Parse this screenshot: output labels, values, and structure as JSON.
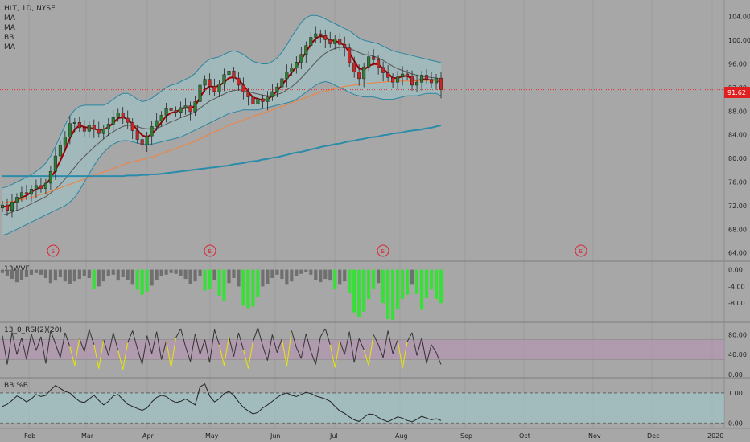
{
  "header": {
    "symbol_line": "HLT, 1D, NYSE",
    "indicators": [
      "MA",
      "MA",
      "BB",
      "MA"
    ]
  },
  "price_label": "91.62",
  "panes": {
    "wvf_label": "13WVF",
    "rsi_label": "13_0_RSI(2)(20)",
    "bbp_label": "BB %B"
  },
  "axes": {
    "price_ticks": [
      "104.00",
      "100.00",
      "96.00",
      "92.00",
      "88.00",
      "84.00",
      "80.00",
      "76.00",
      "72.00",
      "68.00",
      "64.00"
    ],
    "wvf_ticks": [
      "0.00",
      "-4.00",
      "-8.00"
    ],
    "rsi_ticks": [
      "80.00",
      "40.00",
      "0.00"
    ],
    "bbp_ticks": [
      "1.00",
      "0.00"
    ],
    "time_ticks": [
      "Feb",
      "Mar",
      "Apr",
      "May",
      "Jun",
      "Jul",
      "Aug",
      "Sep",
      "Oct",
      "Nov",
      "Dec",
      "2020"
    ]
  },
  "earnings_marker": "E",
  "colors": {
    "background": "#a7a7a7",
    "up_candle": "#2e7d32",
    "down_candle": "#c62828",
    "ma_fast": "#a00000",
    "ma_slow": "#555555",
    "ma_100": "#e8874a",
    "ma_200": "#2b8caa",
    "bb_fill": "#9ec8cc",
    "bb_line": "#2a86a1",
    "price_line": "#e03030",
    "wvf_bar": "#6f6f6f",
    "wvf_spike": "#36e036",
    "rsi_band": "#b493b0",
    "rsi_line": "#333333",
    "rsi_highlight": "#e8e800",
    "bbp_fill": "#9ec8cc"
  },
  "chart_data": [
    {
      "type": "candlestick",
      "title": "HLT, 1D, NYSE",
      "ylim": [
        63,
        106
      ],
      "x_range": [
        "2019-01-21",
        "2020-01-06"
      ],
      "x_ticks": [
        "Feb",
        "Mar",
        "Apr",
        "May",
        "Jun",
        "Jul",
        "Aug",
        "Sep",
        "Oct",
        "Nov",
        "Dec",
        "2020"
      ],
      "last_price": 91.62,
      "close_series": [
        72.1,
        71.2,
        72.6,
        73.4,
        74.2,
        73.9,
        74.8,
        75.4,
        74.9,
        75.8,
        77.8,
        80.4,
        82.2,
        83.6,
        85.9,
        86.1,
        85.2,
        84.6,
        85.6,
        84.9,
        84.2,
        85.0,
        85.8,
        86.9,
        87.7,
        86.8,
        86.1,
        84.7,
        83.2,
        82.3,
        83.8,
        85.4,
        86.4,
        87.3,
        88.4,
        88.1,
        87.8,
        88.6,
        88.9,
        87.9,
        89.6,
        92.4,
        93.4,
        92.2,
        91.3,
        92.6,
        94.2,
        94.8,
        93.6,
        92.4,
        91.2,
        90.4,
        89.2,
        90.1,
        89.6,
        90.4,
        91.3,
        92.1,
        93.5,
        94.6,
        95.3,
        96.3,
        97.6,
        99.1,
        100.5,
        101.1,
        100.8,
        100.1,
        99.4,
        100.2,
        99.3,
        98.7,
        96.2,
        94.6,
        93.5,
        95.5,
        97.2,
        96.7,
        95.4,
        94.5,
        93.7,
        92.9,
        93.8,
        94.3,
        93.9,
        92.4,
        92.9,
        94.1,
        93.4,
        92.8,
        93.6,
        91.62
      ],
      "series": [
        {
          "name": "MA",
          "values": [
            71.8,
            71.9,
            72.3,
            72.9,
            73.4,
            73.7,
            74.3,
            74.8,
            75.1,
            75.6,
            76.6,
            78.0,
            79.6,
            81.4,
            83.4,
            84.9,
            85.6,
            85.3,
            85.2,
            85.0,
            84.8,
            84.9,
            85.3,
            86.0,
            86.8,
            87.0,
            86.6,
            85.8,
            84.8,
            83.9,
            83.6,
            84.1,
            85.0,
            86.1,
            87.2,
            87.7,
            87.9,
            88.3,
            88.6,
            88.5,
            88.9,
            90.3,
            91.6,
            92.2,
            92.1,
            92.3,
            92.9,
            93.6,
            93.8,
            93.3,
            92.4,
            91.3,
            90.3,
            90.1,
            89.8,
            90.0,
            90.6,
            91.4,
            92.4,
            93.5,
            94.5,
            95.5,
            96.7,
            98.0,
            99.3,
            100.3,
            100.7,
            100.5,
            100.0,
            99.9,
            99.6,
            99.1,
            97.9,
            96.5,
            95.2,
            95.0,
            95.6,
            96.0,
            95.9,
            95.2,
            94.4,
            93.6,
            93.6,
            93.9,
            94.0,
            93.4,
            93.1,
            93.4,
            93.4,
            93.2,
            93.3,
            92.9
          ]
        },
        {
          "name": "MA",
          "values": [
            70.4,
            70.6,
            70.9,
            71.2,
            71.5,
            71.9,
            72.3,
            72.7,
            73.1,
            73.5,
            74.1,
            74.8,
            75.6,
            76.5,
            77.5,
            78.5,
            79.5,
            80.3,
            81.1,
            81.9,
            82.6,
            83.3,
            84.0,
            84.5,
            85.0,
            85.4,
            85.6,
            85.6,
            85.4,
            85.1,
            85.0,
            85.0,
            85.1,
            85.4,
            85.8,
            86.2,
            86.5,
            86.9,
            87.2,
            87.5,
            87.9,
            88.5,
            89.1,
            89.7,
            90.1,
            90.5,
            90.9,
            91.3,
            91.5,
            91.6,
            91.5,
            91.3,
            91.1,
            90.9,
            90.7,
            90.6,
            90.6,
            90.8,
            91.1,
            91.6,
            92.1,
            92.8,
            93.6,
            94.5,
            95.4,
            96.3,
            97.1,
            97.8,
            98.3,
            98.6,
            98.8,
            98.8,
            98.6,
            98.3,
            97.9,
            97.6,
            97.5,
            97.3,
            97.0,
            96.6,
            96.1,
            95.6,
            95.2,
            94.9,
            94.6,
            94.3,
            94.1,
            93.9,
            93.8,
            93.7,
            93.6,
            93.4
          ]
        },
        {
          "name": "MA",
          "values": [
            72.5,
            72.6,
            72.7,
            72.9,
            73.0,
            73.2,
            73.4,
            73.6,
            73.9,
            74.1,
            74.4,
            74.7,
            75.0,
            75.3,
            75.6,
            75.9,
            76.2,
            76.5,
            76.8,
            77.1,
            77.4,
            77.7,
            78.0,
            78.3,
            78.6,
            78.9,
            79.2,
            79.4,
            79.6,
            79.8,
            80.0,
            80.2,
            80.5,
            80.8,
            81.1,
            81.4,
            81.7,
            82.0,
            82.3,
            82.6,
            82.9,
            83.3,
            83.7,
            84.1,
            84.5,
            84.8,
            85.2,
            85.6,
            85.9,
            86.2,
            86.5,
            86.8,
            87.1,
            87.4,
            87.6,
            87.9,
            88.2,
            88.5,
            88.8,
            89.1,
            89.4,
            89.7,
            90.0,
            90.3,
            90.6,
            90.9,
            91.2,
            91.4,
            91.6,
            91.8,
            92.0,
            92.2,
            92.3,
            92.4,
            92.5,
            92.6,
            92.7,
            92.8,
            92.9,
            92.9,
            93.0,
            93.0,
            93.1,
            93.1,
            93.1,
            93.1,
            93.1,
            93.2,
            93.2,
            93.2,
            93.2,
            93.2
          ]
        },
        {
          "name": "MA",
          "values": [
            77.0,
            77.0,
            77.0,
            77.0,
            77.0,
            77.0,
            77.0,
            77.0,
            77.0,
            77.0,
            77.0,
            77.0,
            77.0,
            77.0,
            77.0,
            77.0,
            77.0,
            77.0,
            77.0,
            77.0,
            77.0,
            77.0,
            77.0,
            77.0,
            77.0,
            77.0,
            77.1,
            77.1,
            77.1,
            77.2,
            77.2,
            77.3,
            77.3,
            77.4,
            77.5,
            77.6,
            77.7,
            77.8,
            77.9,
            78.0,
            78.1,
            78.2,
            78.3,
            78.4,
            78.5,
            78.6,
            78.7,
            78.8,
            79.0,
            79.1,
            79.2,
            79.4,
            79.5,
            79.6,
            79.8,
            79.9,
            80.1,
            80.2,
            80.4,
            80.6,
            80.8,
            81.0,
            81.1,
            81.3,
            81.5,
            81.7,
            81.9,
            82.1,
            82.2,
            82.4,
            82.5,
            82.7,
            82.9,
            83.0,
            83.2,
            83.3,
            83.5,
            83.6,
            83.7,
            83.9,
            84.0,
            84.2,
            84.3,
            84.4,
            84.6,
            84.7,
            84.8,
            84.9,
            85.1,
            85.2,
            85.4,
            85.6
          ]
        },
        {
          "name": "BB",
          "values": []
        }
      ],
      "bb_upper": [
        75.0,
        75.2,
        75.6,
        76.0,
        76.4,
        76.8,
        77.2,
        77.8,
        78.4,
        79.2,
        80.4,
        82.0,
        83.8,
        85.6,
        87.2,
        88.2,
        88.8,
        89.0,
        89.0,
        89.0,
        89.0,
        89.0,
        89.4,
        90.0,
        90.6,
        91.0,
        91.0,
        90.6,
        90.0,
        89.6,
        89.8,
        90.2,
        90.8,
        91.4,
        92.0,
        92.4,
        92.6,
        93.0,
        93.4,
        93.8,
        94.4,
        95.4,
        96.2,
        96.8,
        97.0,
        97.2,
        97.6,
        98.0,
        98.2,
        98.0,
        97.6,
        97.0,
        96.4,
        96.2,
        96.0,
        96.0,
        96.4,
        97.0,
        98.0,
        99.2,
        100.6,
        101.8,
        103.0,
        103.8,
        104.2,
        104.2,
        104.0,
        103.6,
        103.2,
        102.8,
        102.4,
        102.0,
        101.6,
        101.0,
        100.4,
        100.0,
        99.8,
        99.6,
        99.4,
        99.0,
        98.6,
        98.2,
        98.0,
        97.8,
        97.6,
        97.4,
        97.2,
        97.0,
        96.8,
        96.6,
        96.4,
        96.2
      ],
      "bb_lower": [
        67.0,
        67.2,
        67.6,
        68.0,
        68.4,
        68.8,
        69.2,
        69.6,
        70.0,
        70.4,
        70.8,
        71.2,
        71.6,
        72.0,
        72.6,
        73.4,
        74.6,
        76.0,
        77.4,
        78.8,
        80.0,
        81.0,
        81.8,
        82.4,
        82.8,
        83.0,
        83.0,
        82.8,
        82.6,
        82.4,
        82.4,
        82.4,
        82.6,
        82.8,
        83.0,
        83.2,
        83.4,
        83.6,
        84.0,
        84.4,
        84.8,
        85.2,
        85.6,
        86.0,
        86.4,
        86.8,
        87.2,
        87.6,
        87.8,
        88.0,
        88.2,
        88.2,
        88.2,
        88.2,
        88.4,
        88.6,
        88.8,
        89.0,
        89.2,
        89.4,
        89.6,
        90.0,
        90.6,
        91.2,
        91.8,
        92.4,
        92.8,
        93.0,
        92.8,
        92.4,
        92.0,
        91.6,
        91.2,
        90.8,
        90.6,
        90.4,
        90.4,
        90.4,
        90.2,
        90.0,
        90.0,
        90.0,
        90.2,
        90.4,
        90.6,
        90.6,
        90.6,
        90.8,
        91.0,
        91.0,
        91.0,
        90.6
      ]
    },
    {
      "type": "bar",
      "title": "13WVF",
      "ylim": [
        -12,
        0.5
      ],
      "values": [
        -0.8,
        -1.4,
        -2.2,
        -3.0,
        -2.4,
        -1.8,
        -1.2,
        -0.8,
        -1.2,
        -2.0,
        -3.2,
        -2.6,
        -1.8,
        -2.8,
        -3.4,
        -2.8,
        -2.2,
        -1.6,
        -2.0,
        -4.6,
        -4.0,
        -2.8,
        -1.6,
        -1.2,
        -2.6,
        -1.8,
        -2.4,
        -3.6,
        -4.8,
        -6.0,
        -5.2,
        -3.8,
        -2.4,
        -1.6,
        -1.2,
        -0.8,
        -1.0,
        -1.4,
        -2.2,
        -3.4,
        -2.8,
        -1.6,
        -5.0,
        -4.6,
        -2.4,
        -6.2,
        -7.4,
        -3.2,
        -2.0,
        -4.0,
        -8.6,
        -9.2,
        -8.8,
        -6.4,
        -4.0,
        -3.4,
        -2.0,
        -1.2,
        -2.2,
        -3.6,
        -2.8,
        -1.6,
        -1.0,
        -0.6,
        -1.2,
        -2.4,
        -3.0,
        -2.2,
        -2.6,
        -4.6,
        -3.6,
        -2.8,
        -5.6,
        -10.2,
        -11.4,
        -10.0,
        -7.0,
        -4.6,
        -3.2,
        -8.0,
        -11.8,
        -12.0,
        -9.4,
        -7.0,
        -6.0,
        -3.6,
        -5.8,
        -9.6,
        -6.8,
        -4.6,
        -7.0,
        -8.0
      ]
    },
    {
      "type": "line",
      "title": "13_0_RSI(2)(20)",
      "ylim": [
        0,
        100
      ],
      "values": [
        78,
        20,
        85,
        40,
        74,
        30,
        82,
        48,
        76,
        22,
        88,
        62,
        34,
        84,
        56,
        18,
        72,
        46,
        90,
        60,
        12,
        70,
        38,
        84,
        48,
        10,
        64,
        88,
        52,
        20,
        78,
        42,
        86,
        30,
        68,
        14,
        74,
        92,
        56,
        26,
        82,
        40,
        70,
        24,
        90,
        60,
        18,
        76,
        36,
        84,
        50,
        12,
        66,
        94,
        58,
        28,
        80,
        44,
        72,
        16,
        88,
        54,
        32,
        82,
        46,
        20,
        76,
        92,
        60,
        14,
        68,
        40,
        86,
        24,
        72,
        50,
        18,
        80,
        60,
        34,
        88,
        42,
        70,
        12,
        66,
        84,
        38,
        74,
        22,
        60,
        44,
        20
      ]
    },
    {
      "type": "area",
      "title": "BB %B",
      "ylim": [
        -0.1,
        1.4
      ],
      "values": [
        0.55,
        0.62,
        0.75,
        0.9,
        0.82,
        0.7,
        0.8,
        0.95,
        0.88,
        0.92,
        1.1,
        1.25,
        1.15,
        1.05,
        1.0,
        0.85,
        0.72,
        0.68,
        0.8,
        0.92,
        0.75,
        0.6,
        0.72,
        0.9,
        0.95,
        0.78,
        0.62,
        0.55,
        0.48,
        0.42,
        0.5,
        0.7,
        0.85,
        0.92,
        0.88,
        0.76,
        0.68,
        0.72,
        0.8,
        0.7,
        0.6,
        1.2,
        1.3,
        0.9,
        0.7,
        0.8,
        0.98,
        1.05,
        0.92,
        0.7,
        0.52,
        0.4,
        0.3,
        0.35,
        0.5,
        0.6,
        0.72,
        0.85,
        0.95,
        1.0,
        0.92,
        0.88,
        0.95,
        1.02,
        0.98,
        0.9,
        0.85,
        0.8,
        0.72,
        0.55,
        0.4,
        0.32,
        0.2,
        0.1,
        0.05,
        0.18,
        0.3,
        0.28,
        0.18,
        0.1,
        0.04,
        0.12,
        0.2,
        0.16,
        0.08,
        0.04,
        0.12,
        0.22,
        0.16,
        0.1,
        0.14,
        0.08
      ]
    }
  ]
}
